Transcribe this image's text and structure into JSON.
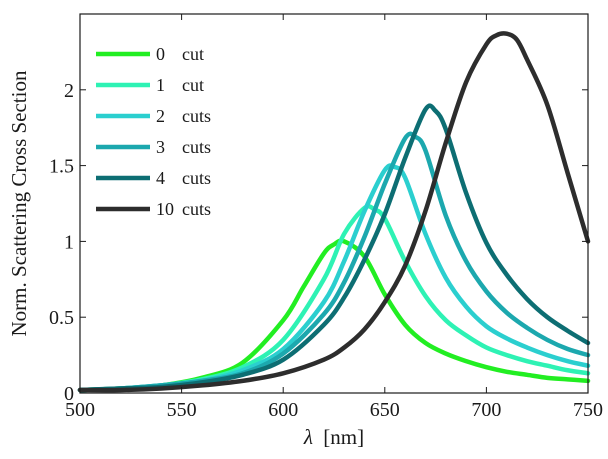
{
  "chart_data": {
    "type": "line",
    "xlabel_symbol": "λ",
    "xlabel_unit": "[nm]",
    "ylabel": "Norm. Scattering Cross Section",
    "xlim": [
      500,
      750
    ],
    "ylim": [
      0,
      2.5
    ],
    "xticks": [
      500,
      550,
      600,
      650,
      700,
      750
    ],
    "yticks": [
      0,
      0.5,
      1,
      1.5,
      2
    ],
    "ytick_labels": [
      "0",
      "0.5",
      "1",
      "1.5",
      "2"
    ],
    "grid": false,
    "legend_position": "top-left",
    "series": [
      {
        "name": "0",
        "unit": "cut",
        "color": "#22ee22",
        "x": [
          500,
          520,
          540,
          560,
          580,
          600,
          610,
          620,
          625,
          630,
          640,
          650,
          660,
          670,
          680,
          690,
          700,
          710,
          720,
          730,
          740,
          750
        ],
        "y": [
          0.02,
          0.03,
          0.05,
          0.1,
          0.2,
          0.48,
          0.7,
          0.92,
          0.98,
          1.0,
          0.9,
          0.65,
          0.45,
          0.33,
          0.26,
          0.21,
          0.17,
          0.14,
          0.12,
          0.1,
          0.09,
          0.08
        ]
      },
      {
        "name": "1",
        "unit": "cut",
        "color": "#2ef2b4",
        "x": [
          500,
          520,
          540,
          560,
          580,
          600,
          620,
          630,
          640,
          645,
          650,
          660,
          670,
          680,
          690,
          700,
          710,
          720,
          730,
          740,
          750
        ],
        "y": [
          0.02,
          0.03,
          0.05,
          0.09,
          0.17,
          0.35,
          0.75,
          1.05,
          1.22,
          1.21,
          1.15,
          0.87,
          0.64,
          0.48,
          0.38,
          0.3,
          0.25,
          0.21,
          0.18,
          0.15,
          0.13
        ]
      },
      {
        "name": "2",
        "unit": "cuts",
        "color": "#2bcfcf",
        "x": [
          500,
          520,
          540,
          560,
          580,
          600,
          620,
          630,
          640,
          650,
          655,
          660,
          670,
          680,
          690,
          700,
          710,
          720,
          730,
          740,
          750
        ],
        "y": [
          0.02,
          0.03,
          0.05,
          0.08,
          0.15,
          0.29,
          0.6,
          0.87,
          1.2,
          1.47,
          1.49,
          1.42,
          1.05,
          0.76,
          0.57,
          0.44,
          0.36,
          0.3,
          0.25,
          0.21,
          0.18
        ]
      },
      {
        "name": "3",
        "unit": "cuts",
        "color": "#1ca8ae",
        "x": [
          500,
          520,
          540,
          560,
          580,
          600,
          620,
          630,
          640,
          650,
          660,
          665,
          670,
          680,
          690,
          700,
          710,
          720,
          730,
          740,
          750
        ],
        "y": [
          0.02,
          0.03,
          0.05,
          0.08,
          0.13,
          0.26,
          0.52,
          0.73,
          1.03,
          1.38,
          1.68,
          1.69,
          1.6,
          1.17,
          0.87,
          0.67,
          0.53,
          0.43,
          0.35,
          0.29,
          0.25
        ]
      },
      {
        "name": "4",
        "unit": "cuts",
        "color": "#0d6e73",
        "x": [
          500,
          520,
          540,
          560,
          580,
          600,
          620,
          630,
          640,
          650,
          660,
          670,
          675,
          680,
          690,
          700,
          710,
          720,
          730,
          740,
          750
        ],
        "y": [
          0.02,
          0.03,
          0.04,
          0.07,
          0.12,
          0.22,
          0.45,
          0.63,
          0.88,
          1.18,
          1.55,
          1.87,
          1.86,
          1.74,
          1.32,
          0.99,
          0.78,
          0.62,
          0.5,
          0.41,
          0.33
        ]
      },
      {
        "name": "10",
        "unit": "cuts",
        "color": "#2d2d2d",
        "x": [
          500,
          520,
          540,
          560,
          580,
          600,
          620,
          630,
          640,
          650,
          660,
          670,
          680,
          690,
          700,
          705,
          710,
          715,
          720,
          730,
          740,
          750
        ],
        "y": [
          0.02,
          0.02,
          0.03,
          0.05,
          0.08,
          0.13,
          0.22,
          0.3,
          0.42,
          0.6,
          0.84,
          1.2,
          1.65,
          2.05,
          2.3,
          2.36,
          2.37,
          2.33,
          2.2,
          1.9,
          1.45,
          1.0
        ]
      }
    ]
  }
}
